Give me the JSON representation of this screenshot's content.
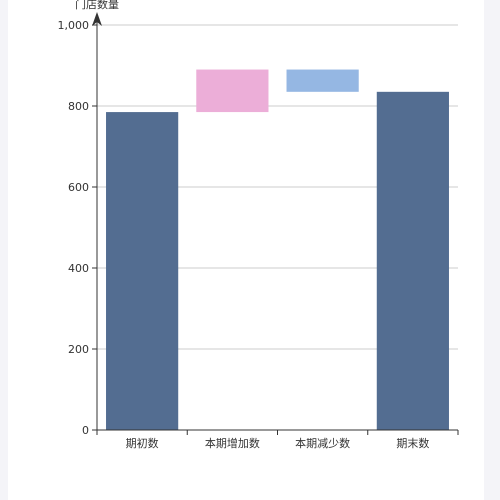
{
  "chart_data": {
    "type": "bar",
    "subtype": "waterfall",
    "title": "",
    "ylabel": "门店数量",
    "xlabel": "",
    "categories": [
      "期初数",
      "本期增加数",
      "本期减少数",
      "期末数"
    ],
    "bars": [
      {
        "category": "期初数",
        "base": 0,
        "top": 785,
        "color": "#536d91"
      },
      {
        "category": "本期增加数",
        "base": 785,
        "top": 890,
        "color": "#ecaed8"
      },
      {
        "category": "本期减少数",
        "base": 835,
        "top": 890,
        "color": "#95b7e3"
      },
      {
        "category": "期末数",
        "base": 0,
        "top": 835,
        "color": "#536d91"
      }
    ],
    "ylim": [
      0,
      1000
    ],
    "yticks": [
      0,
      200,
      400,
      600,
      800,
      1000
    ],
    "ytick_labels": [
      "0",
      "200",
      "400",
      "600",
      "800",
      "1,000"
    ],
    "grid": true
  }
}
